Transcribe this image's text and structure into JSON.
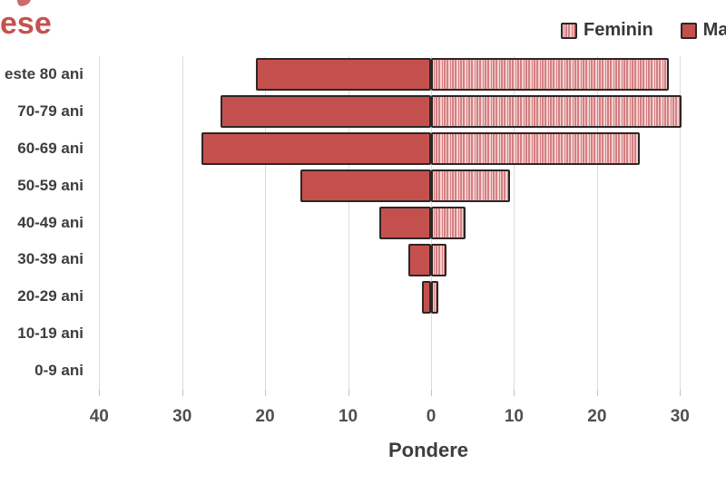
{
  "title": {
    "text": "ese",
    "color": "#c5514f",
    "note": "truncated at left screen edge"
  },
  "legend": {
    "items": [
      {
        "label": "Feminin",
        "series": "feminin",
        "swatch": "striped"
      },
      {
        "label": "Ma",
        "series": "masculin",
        "swatch": "solid",
        "note": "truncated at right screen edge"
      }
    ]
  },
  "chart_data": {
    "type": "bar",
    "variant": "population-pyramid",
    "orientation": "horizontal",
    "title_visible_fragment": "ese",
    "xlabel": "Pondere",
    "categories": [
      "este 80 ani",
      "70-79 ani",
      "60-69 ani",
      "50-59 ani",
      "40-49 ani",
      "30-39 ani",
      "20-29 ani",
      "10-19 ani",
      "0-9 ani"
    ],
    "series": [
      {
        "name": "Feminin",
        "side": "right",
        "pattern": "striped",
        "values": [
          28.7,
          30.2,
          25.2,
          9.5,
          4.2,
          1.9,
          0.9,
          0,
          0
        ]
      },
      {
        "name": "Ma",
        "side": "left",
        "pattern": "solid",
        "values": [
          21.1,
          25.4,
          27.7,
          15.8,
          6.2,
          2.7,
          1.1,
          0,
          0
        ]
      }
    ],
    "x_axis": {
      "tick_labels": [
        "40",
        "30",
        "20",
        "10",
        "0",
        "10",
        "20",
        "30"
      ],
      "tick_step": 10,
      "gridlines": true,
      "mirrored": true
    },
    "ylim_note": "no bars for 10-19 ani and 0-9 ani",
    "colors": {
      "masculin_fill": "#c4504e",
      "bar_border": "#2e2626",
      "feminin_stripe_dark": "#d67f81",
      "feminin_stripe_light": "#f3d4d4",
      "title_red": "#c5514f",
      "grid": "#dcdcdc",
      "text": "#3d3d3d"
    }
  }
}
